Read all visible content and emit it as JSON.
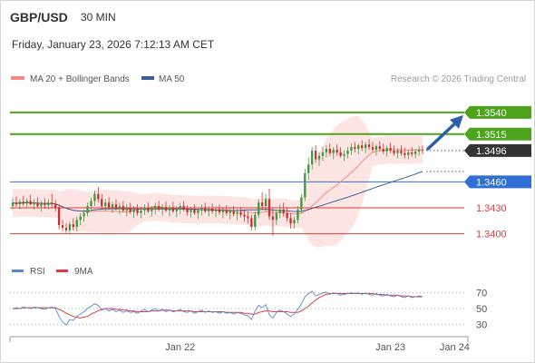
{
  "header": {
    "symbol": "GBP/USD",
    "timeframe": "30 MIN",
    "datetime": "Friday, January 23, 2026 7:12:13 AM CET"
  },
  "legend": {
    "ma20_label": "MA 20 + Bollinger Bands",
    "ma50_label": "MA 50",
    "credit": "Research © 2026 Trading Central",
    "rsi_label": "RSI",
    "rsi_ma_label": "9MA"
  },
  "colors": {
    "green": "#4ea31d",
    "blue": "#2f6fd6",
    "red": "#e03a3a",
    "dark": "#333333",
    "ma20": "#f28b82",
    "ma50": "#3b5f9a",
    "bollinger_fill": "#fde0de",
    "candle_up": "#3f9a3f",
    "candle_down": "#cc2f2f",
    "arrow": "#2f5fa8",
    "rsi_line": "#5b86d6",
    "rsi_ma_line": "#e03a3a"
  },
  "chart_data": [
    {
      "type": "candlestick",
      "ylim": [
        1.3385,
        1.3565
      ],
      "levels": [
        {
          "value": 1.354,
          "label": "1.3540",
          "style": "green-line"
        },
        {
          "value": 1.3515,
          "label": "1.3515",
          "style": "green-line"
        },
        {
          "value": 1.3496,
          "label": "1.3496",
          "style": "current-price"
        },
        {
          "value": 1.346,
          "label": "1.3460",
          "style": "blue-line"
        },
        {
          "value": 1.343,
          "label": "1.3430",
          "style": "red-line"
        },
        {
          "value": 1.34,
          "label": "1.3400",
          "style": "red-line"
        }
      ],
      "x_ticks": [
        {
          "index": 47,
          "label": "Jan 22"
        },
        {
          "index": 106,
          "label": "Jan 23"
        },
        {
          "index": 124,
          "label": "Jan 24"
        }
      ],
      "candles": [
        [
          1.3432,
          1.3441,
          1.3428,
          1.3436
        ],
        [
          1.3436,
          1.3443,
          1.3431,
          1.3434
        ],
        [
          1.3434,
          1.344,
          1.3428,
          1.3437
        ],
        [
          1.3437,
          1.3444,
          1.3432,
          1.3435
        ],
        [
          1.3435,
          1.3441,
          1.343,
          1.3438
        ],
        [
          1.3438,
          1.3445,
          1.3433,
          1.3434
        ],
        [
          1.3434,
          1.344,
          1.3428,
          1.3436
        ],
        [
          1.3436,
          1.3442,
          1.343,
          1.3432
        ],
        [
          1.3432,
          1.3438,
          1.3426,
          1.3435
        ],
        [
          1.3435,
          1.3441,
          1.3429,
          1.3433
        ],
        [
          1.3433,
          1.344,
          1.3428,
          1.3436
        ],
        [
          1.3436,
          1.3446,
          1.343,
          1.3434
        ],
        [
          1.3434,
          1.3439,
          1.3426,
          1.343
        ],
        [
          1.343,
          1.3434,
          1.3405,
          1.341
        ],
        [
          1.341,
          1.3416,
          1.3403,
          1.3407
        ],
        [
          1.3407,
          1.3412,
          1.3401,
          1.3404
        ],
        [
          1.3404,
          1.3414,
          1.3399,
          1.3411
        ],
        [
          1.3411,
          1.3418,
          1.3404,
          1.3408
        ],
        [
          1.3408,
          1.342,
          1.3403,
          1.3416
        ],
        [
          1.3416,
          1.3424,
          1.341,
          1.342
        ],
        [
          1.342,
          1.3428,
          1.3414,
          1.3424
        ],
        [
          1.3424,
          1.3436,
          1.342,
          1.3432
        ],
        [
          1.3432,
          1.3442,
          1.3428,
          1.3438
        ],
        [
          1.3438,
          1.345,
          1.3432,
          1.3446
        ],
        [
          1.3446,
          1.3454,
          1.3436,
          1.344
        ],
        [
          1.344,
          1.3446,
          1.3428,
          1.3432
        ],
        [
          1.3432,
          1.344,
          1.3426,
          1.3436
        ],
        [
          1.3436,
          1.3442,
          1.3428,
          1.343
        ],
        [
          1.343,
          1.3437,
          1.3424,
          1.3434
        ],
        [
          1.3434,
          1.344,
          1.3427,
          1.3429
        ],
        [
          1.3429,
          1.3436,
          1.3423,
          1.3432
        ],
        [
          1.3432,
          1.3438,
          1.3425,
          1.3427
        ],
        [
          1.3427,
          1.3434,
          1.342,
          1.343
        ],
        [
          1.343,
          1.3436,
          1.3423,
          1.3425
        ],
        [
          1.3425,
          1.3432,
          1.3418,
          1.3428
        ],
        [
          1.3428,
          1.3434,
          1.3421,
          1.3424
        ],
        [
          1.3424,
          1.3431,
          1.3418,
          1.3427
        ],
        [
          1.3427,
          1.3434,
          1.3422,
          1.343
        ],
        [
          1.343,
          1.3436,
          1.3424,
          1.3426
        ],
        [
          1.3426,
          1.3432,
          1.342,
          1.3429
        ],
        [
          1.3429,
          1.3436,
          1.3423,
          1.3432
        ],
        [
          1.3432,
          1.3438,
          1.3426,
          1.3428
        ],
        [
          1.3428,
          1.3434,
          1.3421,
          1.3431
        ],
        [
          1.3431,
          1.3437,
          1.3425,
          1.3427
        ],
        [
          1.3427,
          1.3433,
          1.342,
          1.343
        ],
        [
          1.343,
          1.3437,
          1.3424,
          1.3426
        ],
        [
          1.3426,
          1.3432,
          1.3419,
          1.3429
        ],
        [
          1.3429,
          1.3436,
          1.3423,
          1.3432
        ],
        [
          1.3432,
          1.3438,
          1.3426,
          1.3428
        ],
        [
          1.3428,
          1.3433,
          1.3421,
          1.3425
        ],
        [
          1.3425,
          1.3431,
          1.3419,
          1.3428
        ],
        [
          1.3428,
          1.3434,
          1.3422,
          1.3424
        ],
        [
          1.3424,
          1.343,
          1.3417,
          1.3427
        ],
        [
          1.3427,
          1.3434,
          1.3421,
          1.343
        ],
        [
          1.343,
          1.3436,
          1.3424,
          1.3426
        ],
        [
          1.3426,
          1.3432,
          1.342,
          1.3429
        ],
        [
          1.3429,
          1.3435,
          1.3423,
          1.3426
        ],
        [
          1.3426,
          1.3432,
          1.3419,
          1.3428
        ],
        [
          1.3428,
          1.3434,
          1.3422,
          1.3425
        ],
        [
          1.3425,
          1.3431,
          1.3418,
          1.3427
        ],
        [
          1.3427,
          1.3433,
          1.3421,
          1.3424
        ],
        [
          1.3424,
          1.343,
          1.3417,
          1.3426
        ],
        [
          1.3426,
          1.3432,
          1.342,
          1.3423
        ],
        [
          1.3423,
          1.3429,
          1.3416,
          1.3425
        ],
        [
          1.3425,
          1.3431,
          1.3419,
          1.3422
        ],
        [
          1.3422,
          1.3428,
          1.3414,
          1.342
        ],
        [
          1.342,
          1.3426,
          1.3412,
          1.3418
        ],
        [
          1.3418,
          1.3422,
          1.3404,
          1.3408
        ],
        [
          1.3408,
          1.3426,
          1.3404,
          1.3422
        ],
        [
          1.3422,
          1.344,
          1.3418,
          1.3436
        ],
        [
          1.3436,
          1.3448,
          1.3428,
          1.3432
        ],
        [
          1.3432,
          1.3446,
          1.3426,
          1.344
        ],
        [
          1.344,
          1.3452,
          1.3416,
          1.342
        ],
        [
          1.342,
          1.343,
          1.3398,
          1.3416
        ],
        [
          1.3416,
          1.3428,
          1.341,
          1.3424
        ],
        [
          1.3424,
          1.3434,
          1.3418,
          1.3428
        ],
        [
          1.3428,
          1.3436,
          1.342,
          1.3424
        ],
        [
          1.3424,
          1.343,
          1.3414,
          1.3418
        ],
        [
          1.3418,
          1.3424,
          1.3406,
          1.3412
        ],
        [
          1.3412,
          1.342,
          1.3406,
          1.3416
        ],
        [
          1.3416,
          1.3432,
          1.3412,
          1.3428
        ],
        [
          1.3428,
          1.3446,
          1.3424,
          1.3442
        ],
        [
          1.3442,
          1.3475,
          1.3438,
          1.347
        ],
        [
          1.347,
          1.3488,
          1.3462,
          1.348
        ],
        [
          1.348,
          1.35,
          1.3474,
          1.3496
        ],
        [
          1.3496,
          1.3502,
          1.3482,
          1.3486
        ],
        [
          1.3486,
          1.3494,
          1.3478,
          1.349
        ],
        [
          1.349,
          1.35,
          1.3484,
          1.3494
        ],
        [
          1.3494,
          1.3502,
          1.3488,
          1.3498
        ],
        [
          1.3498,
          1.3504,
          1.349,
          1.3493
        ],
        [
          1.3493,
          1.35,
          1.3486,
          1.3497
        ],
        [
          1.3497,
          1.3503,
          1.349,
          1.3494
        ],
        [
          1.3494,
          1.35,
          1.3488,
          1.349
        ],
        [
          1.349,
          1.3496,
          1.3484,
          1.3492
        ],
        [
          1.3492,
          1.35,
          1.3487,
          1.3496
        ],
        [
          1.3496,
          1.3504,
          1.3491,
          1.35
        ],
        [
          1.35,
          1.3506,
          1.3494,
          1.3498
        ],
        [
          1.3498,
          1.3504,
          1.3492,
          1.3502
        ],
        [
          1.3502,
          1.3508,
          1.3496,
          1.3499
        ],
        [
          1.3499,
          1.3506,
          1.3493,
          1.3503
        ],
        [
          1.3503,
          1.3509,
          1.3497,
          1.35
        ],
        [
          1.35,
          1.3506,
          1.3494,
          1.3497
        ],
        [
          1.3497,
          1.3503,
          1.349,
          1.3501
        ],
        [
          1.3501,
          1.3507,
          1.3495,
          1.3498
        ],
        [
          1.3498,
          1.3504,
          1.3492,
          1.3495
        ],
        [
          1.3495,
          1.3502,
          1.3489,
          1.3499
        ],
        [
          1.3499,
          1.3505,
          1.3493,
          1.3496
        ],
        [
          1.3496,
          1.3502,
          1.349,
          1.3493
        ],
        [
          1.3493,
          1.3499,
          1.3487,
          1.3496
        ],
        [
          1.3496,
          1.3502,
          1.349,
          1.3493
        ],
        [
          1.3493,
          1.3499,
          1.3487,
          1.3491
        ],
        [
          1.3491,
          1.3497,
          1.3486,
          1.3494
        ],
        [
          1.3494,
          1.35,
          1.3489,
          1.3492
        ],
        [
          1.3492,
          1.3498,
          1.3487,
          1.3495
        ],
        [
          1.3495,
          1.3501,
          1.349,
          1.3497
        ],
        [
          1.3497,
          1.3502,
          1.3492,
          1.3496
        ]
      ]
    },
    {
      "type": "line",
      "name": "RSI",
      "ylim": [
        20,
        80
      ],
      "y_ticks": [
        70,
        50,
        30
      ],
      "rsi": [
        50,
        51,
        50,
        52,
        51,
        50,
        52,
        51,
        50,
        49,
        51,
        52,
        50,
        40,
        33,
        29,
        36,
        35,
        40,
        43,
        46,
        50,
        53,
        56,
        54,
        48,
        50,
        47,
        49,
        46,
        48,
        45,
        47,
        45,
        46,
        44,
        47,
        49,
        46,
        48,
        50,
        47,
        49,
        46,
        48,
        46,
        47,
        49,
        46,
        45,
        47,
        44,
        46,
        48,
        45,
        47,
        45,
        46,
        44,
        46,
        44,
        45,
        43,
        45,
        44,
        42,
        41,
        36,
        47,
        54,
        51,
        55,
        42,
        38,
        45,
        48,
        46,
        43,
        40,
        43,
        49,
        56,
        65,
        69,
        72,
        66,
        68,
        70,
        71,
        68,
        70,
        69,
        67,
        68,
        69,
        70,
        69,
        70,
        68,
        70,
        68,
        67,
        69,
        67,
        66,
        68,
        66,
        65,
        67,
        65,
        64,
        66,
        64,
        65,
        66,
        65
      ],
      "rsi_ma": [
        50,
        50,
        50,
        51,
        51,
        51,
        51,
        51,
        51,
        51,
        51,
        51,
        51,
        49,
        47,
        44,
        42,
        40,
        39,
        38,
        39,
        40,
        43,
        45,
        47,
        49,
        50,
        50,
        50,
        49,
        49,
        48,
        48,
        47,
        47,
        46,
        46,
        46,
        46,
        47,
        47,
        47,
        48,
        48,
        48,
        47,
        47,
        47,
        47,
        47,
        47,
        46,
        46,
        46,
        46,
        46,
        46,
        46,
        46,
        46,
        45,
        45,
        45,
        45,
        45,
        44,
        44,
        43,
        43,
        45,
        46,
        47,
        47,
        46,
        46,
        46,
        46,
        46,
        45,
        45,
        45,
        47,
        50,
        53,
        57,
        61,
        64,
        66,
        68,
        69,
        69,
        69,
        69,
        69,
        69,
        69,
        69,
        69,
        69,
        69,
        69,
        69,
        68,
        68,
        68,
        67,
        67,
        67,
        67,
        66,
        66,
        66,
        65,
        65,
        65,
        65
      ]
    }
  ]
}
